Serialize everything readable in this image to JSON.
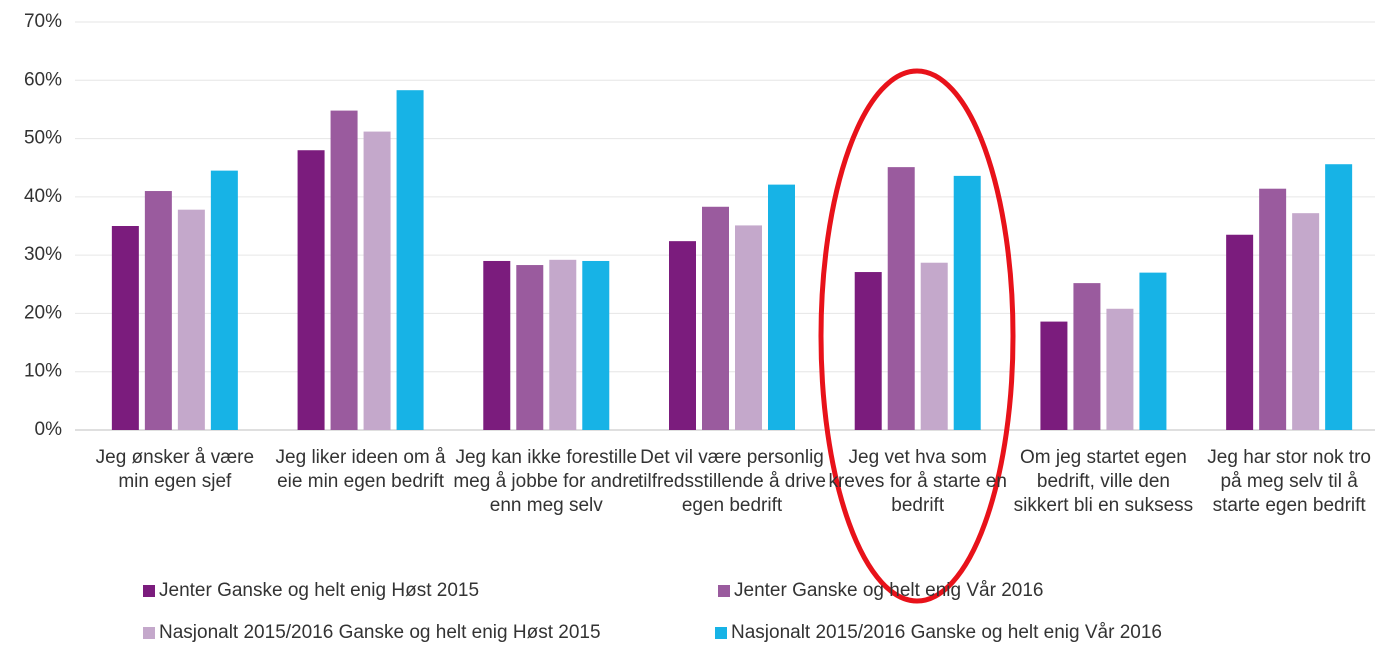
{
  "chart_data": {
    "type": "bar",
    "categories": [
      "Jeg ønsker å være min egen sjef",
      "Jeg liker ideen om å eie min egen bedrift",
      "Jeg kan ikke forestille meg å jobbe for andre enn meg selv",
      "Det vil være personlig tilfredsstillende å drive egen bedrift",
      "Jeg vet hva som kreves for å starte en bedrift",
      "Om jeg startet egen bedrift, ville den sikkert bli en suksess",
      "Jeg har stor nok tro på meg selv til å starte egen bedrift"
    ],
    "series": [
      {
        "name": "Jenter Ganske og helt enig Høst 2015",
        "color": "#7b1c7d",
        "values": [
          35,
          48,
          29,
          32.4,
          27.1,
          18.6,
          33.5
        ]
      },
      {
        "name": "Jenter Ganske og helt enig Vår 2016",
        "color": "#9a5b9e",
        "values": [
          41,
          54.8,
          28.3,
          38.3,
          45.1,
          25.2,
          41.4
        ]
      },
      {
        "name": "Nasjonalt 2015/2016 Ganske og helt enig Høst 2015",
        "color": "#c4a8cb",
        "values": [
          37.8,
          51.2,
          29.2,
          35.1,
          28.7,
          20.8,
          37.2
        ]
      },
      {
        "name": "Nasjonalt 2015/2016 Ganske og helt enig Vår 2016",
        "color": "#17b3e6",
        "values": [
          44.5,
          58.3,
          29,
          42.1,
          43.6,
          27,
          45.6
        ]
      }
    ],
    "ylim": [
      0,
      70
    ],
    "yticks": [
      {
        "value": 0,
        "label": "0%"
      },
      {
        "value": 10,
        "label": "10%"
      },
      {
        "value": 20,
        "label": "20%"
      },
      {
        "value": 30,
        "label": "30%"
      },
      {
        "value": 40,
        "label": "40%"
      },
      {
        "value": 50,
        "label": "50%"
      },
      {
        "value": 60,
        "label": "60%"
      },
      {
        "value": 70,
        "label": "70%"
      }
    ],
    "grid": true
  }
}
